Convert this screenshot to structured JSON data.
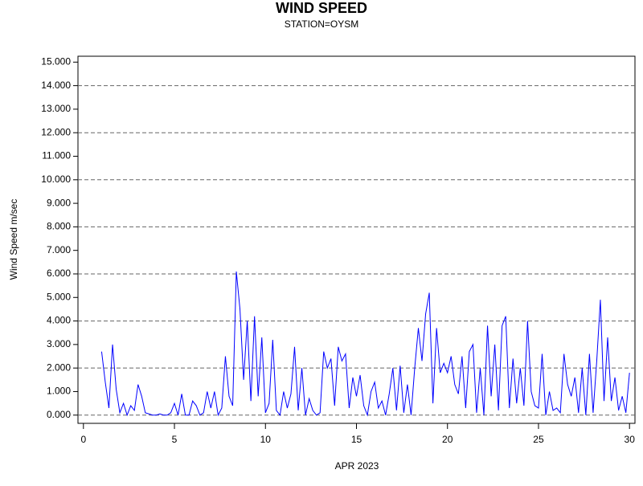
{
  "chart_data": {
    "type": "line",
    "title": "WIND SPEED",
    "subtitle": "STATION=OYSM",
    "x_label": "APR 2023",
    "y_label": "Wind Speed m/sec",
    "color": "#0000ff",
    "xlim": [
      -0.3,
      30.3
    ],
    "xticks": [
      0,
      5,
      10,
      15,
      20,
      25,
      30
    ],
    "ylim": [
      -0.35,
      15.25
    ],
    "yticks": [
      {
        "value": 0,
        "label": "0.000"
      },
      {
        "value": 1,
        "label": "1.000"
      },
      {
        "value": 2,
        "label": "2.000"
      },
      {
        "value": 3,
        "label": "3.000"
      },
      {
        "value": 4,
        "label": "4.000"
      },
      {
        "value": 5,
        "label": "5.000"
      },
      {
        "value": 6,
        "label": "6.000"
      },
      {
        "value": 7,
        "label": "7.000"
      },
      {
        "value": 8,
        "label": "8.000"
      },
      {
        "value": 9,
        "label": "9.000"
      },
      {
        "value": 10,
        "label": "10.000"
      },
      {
        "value": 11,
        "label": "11.000"
      },
      {
        "value": 12,
        "label": "12.000"
      },
      {
        "value": 13,
        "label": "13.000"
      },
      {
        "value": 14,
        "label": "14.000"
      },
      {
        "value": 15,
        "label": "15.000"
      }
    ],
    "ygrid": [
      0,
      2,
      4,
      6,
      8,
      10,
      12,
      14
    ],
    "x": [
      1.0,
      1.2,
      1.4,
      1.6,
      1.8,
      2.0,
      2.2,
      2.4,
      2.6,
      2.8,
      3.0,
      3.2,
      3.4,
      3.6,
      3.8,
      4.0,
      4.2,
      4.4,
      4.6,
      4.8,
      5.0,
      5.2,
      5.4,
      5.6,
      5.8,
      6.0,
      6.2,
      6.4,
      6.6,
      6.8,
      7.0,
      7.2,
      7.4,
      7.6,
      7.8,
      8.0,
      8.2,
      8.4,
      8.6,
      8.8,
      9.0,
      9.2,
      9.4,
      9.6,
      9.8,
      10.0,
      10.2,
      10.4,
      10.6,
      10.8,
      11.0,
      11.2,
      11.4,
      11.6,
      11.8,
      12.0,
      12.2,
      12.4,
      12.6,
      12.8,
      13.0,
      13.2,
      13.4,
      13.6,
      13.8,
      14.0,
      14.2,
      14.4,
      14.6,
      14.8,
      15.0,
      15.2,
      15.4,
      15.6,
      15.8,
      16.0,
      16.2,
      16.4,
      16.6,
      16.8,
      17.0,
      17.2,
      17.4,
      17.6,
      17.8,
      18.0,
      18.2,
      18.4,
      18.6,
      18.8,
      19.0,
      19.2,
      19.4,
      19.6,
      19.8,
      20.0,
      20.2,
      20.4,
      20.6,
      20.8,
      21.0,
      21.2,
      21.4,
      21.6,
      21.8,
      22.0,
      22.2,
      22.4,
      22.6,
      22.8,
      23.0,
      23.2,
      23.4,
      23.6,
      23.8,
      24.0,
      24.2,
      24.4,
      24.6,
      24.8,
      25.0,
      25.2,
      25.4,
      25.6,
      25.8,
      26.0,
      26.2,
      26.4,
      26.6,
      26.8,
      27.0,
      27.2,
      27.4,
      27.6,
      27.8,
      28.0,
      28.2,
      28.4,
      28.6,
      28.8,
      29.0,
      29.2,
      29.4,
      29.6,
      29.8,
      30.0
    ],
    "values": [
      2.7,
      1.4,
      0.3,
      3.0,
      1.1,
      0.1,
      0.5,
      0.0,
      0.4,
      0.2,
      1.3,
      0.8,
      0.1,
      0.05,
      0.0,
      0.0,
      0.05,
      0.0,
      0.0,
      0.1,
      0.5,
      0.0,
      0.9,
      0.0,
      0.0,
      0.6,
      0.4,
      0.0,
      0.1,
      1.0,
      0.3,
      1.0,
      0.0,
      0.3,
      2.5,
      0.8,
      0.4,
      6.1,
      4.5,
      1.5,
      4.0,
      0.6,
      4.2,
      0.8,
      3.3,
      0.1,
      0.5,
      3.2,
      0.2,
      0.0,
      1.0,
      0.3,
      0.9,
      2.9,
      0.2,
      2.0,
      0.0,
      0.7,
      0.2,
      0.0,
      0.1,
      2.7,
      2.0,
      2.4,
      0.4,
      2.9,
      2.3,
      2.6,
      0.3,
      1.6,
      0.8,
      1.7,
      0.4,
      0.0,
      1.0,
      1.4,
      0.3,
      0.6,
      0.0,
      0.9,
      2.0,
      0.2,
      2.1,
      0.1,
      1.3,
      0.0,
      2.0,
      3.7,
      2.3,
      4.3,
      5.2,
      0.5,
      3.7,
      1.8,
      2.2,
      1.8,
      2.5,
      1.3,
      0.9,
      2.5,
      0.3,
      2.7,
      3.0,
      0.1,
      2.0,
      0.0,
      3.8,
      0.8,
      3.0,
      0.2,
      3.8,
      4.2,
      0.3,
      2.4,
      0.5,
      2.0,
      0.4,
      4.0,
      1.0,
      0.4,
      0.3,
      2.6,
      0.0,
      1.0,
      0.2,
      0.3,
      0.1,
      2.6,
      1.3,
      0.8,
      1.6,
      0.1,
      2.0,
      0.0,
      2.6,
      0.1,
      2.3,
      4.9,
      0.6,
      3.3,
      0.6,
      1.6,
      0.2,
      0.8,
      0.1,
      1.8
    ]
  }
}
